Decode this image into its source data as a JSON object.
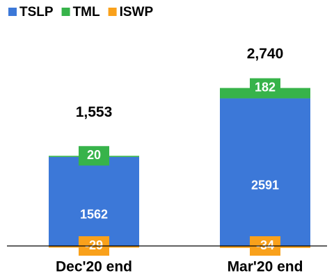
{
  "chart_data": {
    "type": "stacked_bar",
    "categories": [
      "Dec'20 end",
      "Mar'20 end"
    ],
    "series": [
      {
        "name": "TSLP",
        "color": "#3c78d8",
        "values": [
          1562,
          2591
        ]
      },
      {
        "name": "TML",
        "color": "#37b34a",
        "values": [
          20,
          182
        ]
      },
      {
        "name": "ISWP",
        "color": "#f9a11b",
        "values": [
          -29,
          -34
        ]
      }
    ],
    "totals": {
      "values": [
        1553,
        2740
      ],
      "value_labels": [
        "1,553",
        "2,740"
      ]
    },
    "ylim": [
      -500,
      3000
    ],
    "legend": "top-left"
  }
}
